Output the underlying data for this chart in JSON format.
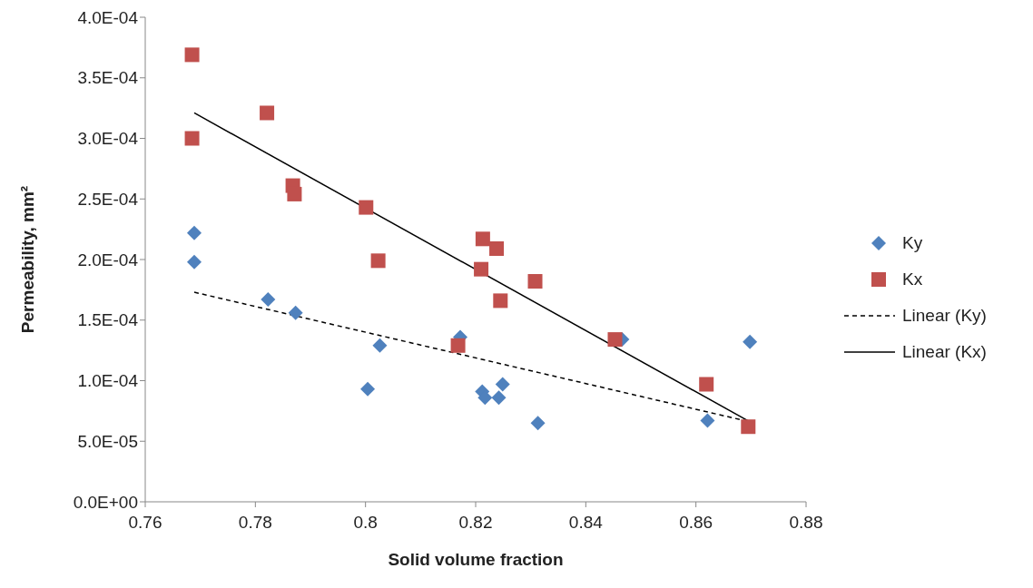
{
  "chart_data": {
    "type": "scatter",
    "xlabel": "Solid volume fraction",
    "ylabel": "Permeability, mm²",
    "xlim": [
      0.76,
      0.88
    ],
    "xticks": [
      0.76,
      0.78,
      0.8,
      0.82,
      0.84,
      0.86,
      0.88
    ],
    "ylim": [
      0,
      0.0004
    ],
    "yticks": [
      {
        "value": 0,
        "label": "0.0E+00"
      },
      {
        "value": 5e-05,
        "label": "5.0E-05"
      },
      {
        "value": 0.0001,
        "label": "1.0E-04"
      },
      {
        "value": 0.00015,
        "label": "1.5E-04"
      },
      {
        "value": 0.0002,
        "label": "2.0E-04"
      },
      {
        "value": 0.00025,
        "label": "2.5E-04"
      },
      {
        "value": 0.0003,
        "label": "3.0E-04"
      },
      {
        "value": 0.00035,
        "label": "3.5E-04"
      },
      {
        "value": 0.0004,
        "label": "4.0E-04"
      }
    ],
    "grid": false,
    "legend": "right",
    "series": [
      {
        "name": "Ky",
        "marker": "diamond",
        "color": "#4f81bd",
        "x": [
          0.7689,
          0.7689,
          0.7823,
          0.7873,
          0.8004,
          0.8026,
          0.8172,
          0.8212,
          0.8217,
          0.8242,
          0.8249,
          0.8313,
          0.8466,
          0.8621,
          0.8698
        ],
        "values": [
          0.000222,
          0.000198,
          0.000167,
          0.000156,
          9.3e-05,
          0.000129,
          0.000136,
          9.1e-05,
          8.6e-05,
          8.6e-05,
          9.7e-05,
          6.5e-05,
          0.000134,
          6.7e-05,
          0.000132
        ]
      },
      {
        "name": "Kx",
        "marker": "square",
        "color": "#c0504d",
        "x": [
          0.7685,
          0.7685,
          0.7821,
          0.7868,
          0.7871,
          0.8001,
          0.8023,
          0.8168,
          0.821,
          0.8213,
          0.8238,
          0.8245,
          0.8308,
          0.8453,
          0.8619,
          0.8695
        ],
        "values": [
          0.000369,
          0.0003,
          0.000321,
          0.000261,
          0.000254,
          0.000243,
          0.000199,
          0.000129,
          0.000192,
          0.000217,
          0.000209,
          0.000166,
          0.000182,
          0.000134,
          9.7e-05,
          6.2e-05
        ]
      },
      {
        "name": "Linear (Ky)",
        "type": "line",
        "marker": "none",
        "line_style": "dashed",
        "color": "#000000",
        "x": [
          0.7689,
          0.8698
        ],
        "values": [
          0.000173,
          6.6e-05
        ]
      },
      {
        "name": "Linear (Kx)",
        "type": "line",
        "marker": "none",
        "line_style": "solid",
        "color": "#000000",
        "x": [
          0.7689,
          0.8698
        ],
        "values": [
          0.000321,
          6.6e-05
        ]
      }
    ]
  }
}
